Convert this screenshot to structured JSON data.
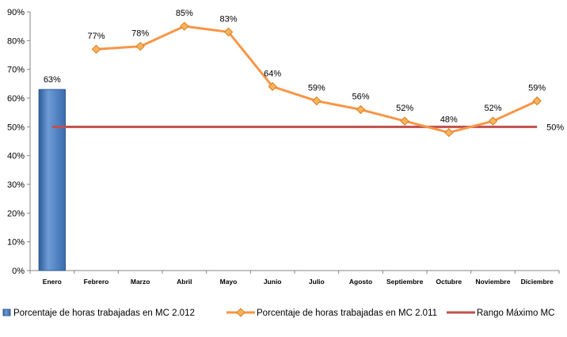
{
  "chart_data": {
    "type": "bar+line",
    "categories": [
      "Enero",
      "Febrero",
      "Marzo",
      "Abril",
      "Mayo",
      "Junio",
      "Julio",
      "Agosto",
      "Septiembre",
      "Octubre",
      "Noviembre",
      "Diciembre"
    ],
    "y_ticks": [
      "0%",
      "10%",
      "20%",
      "30%",
      "40%",
      "50%",
      "60%",
      "70%",
      "80%",
      "90%"
    ],
    "ylim": [
      0,
      90
    ],
    "grid": false,
    "legend_position": "bottom",
    "series": [
      {
        "name": "Porcentaje de horas trabajadas en MC 2.012",
        "kind": "bar",
        "color": "#4a7ebb",
        "values": [
          63,
          null,
          null,
          null,
          null,
          null,
          null,
          null,
          null,
          null,
          null,
          null
        ],
        "labels": [
          "63%"
        ]
      },
      {
        "name": "Porcentaje de horas trabajadas en MC 2.011",
        "kind": "line",
        "color": "#f79646",
        "marker": "diamond",
        "values": [
          null,
          77,
          78,
          85,
          83,
          64,
          59,
          56,
          52,
          48,
          52,
          59
        ],
        "labels": [
          "",
          "77%",
          "78%",
          "85%",
          "83%",
          "64%",
          "59%",
          "56%",
          "52%",
          "48%",
          "52%",
          "59%"
        ]
      },
      {
        "name": "Rango Máximo MC",
        "kind": "reference_line",
        "color": "#c0504d",
        "value": 50,
        "label": "50%"
      }
    ]
  }
}
